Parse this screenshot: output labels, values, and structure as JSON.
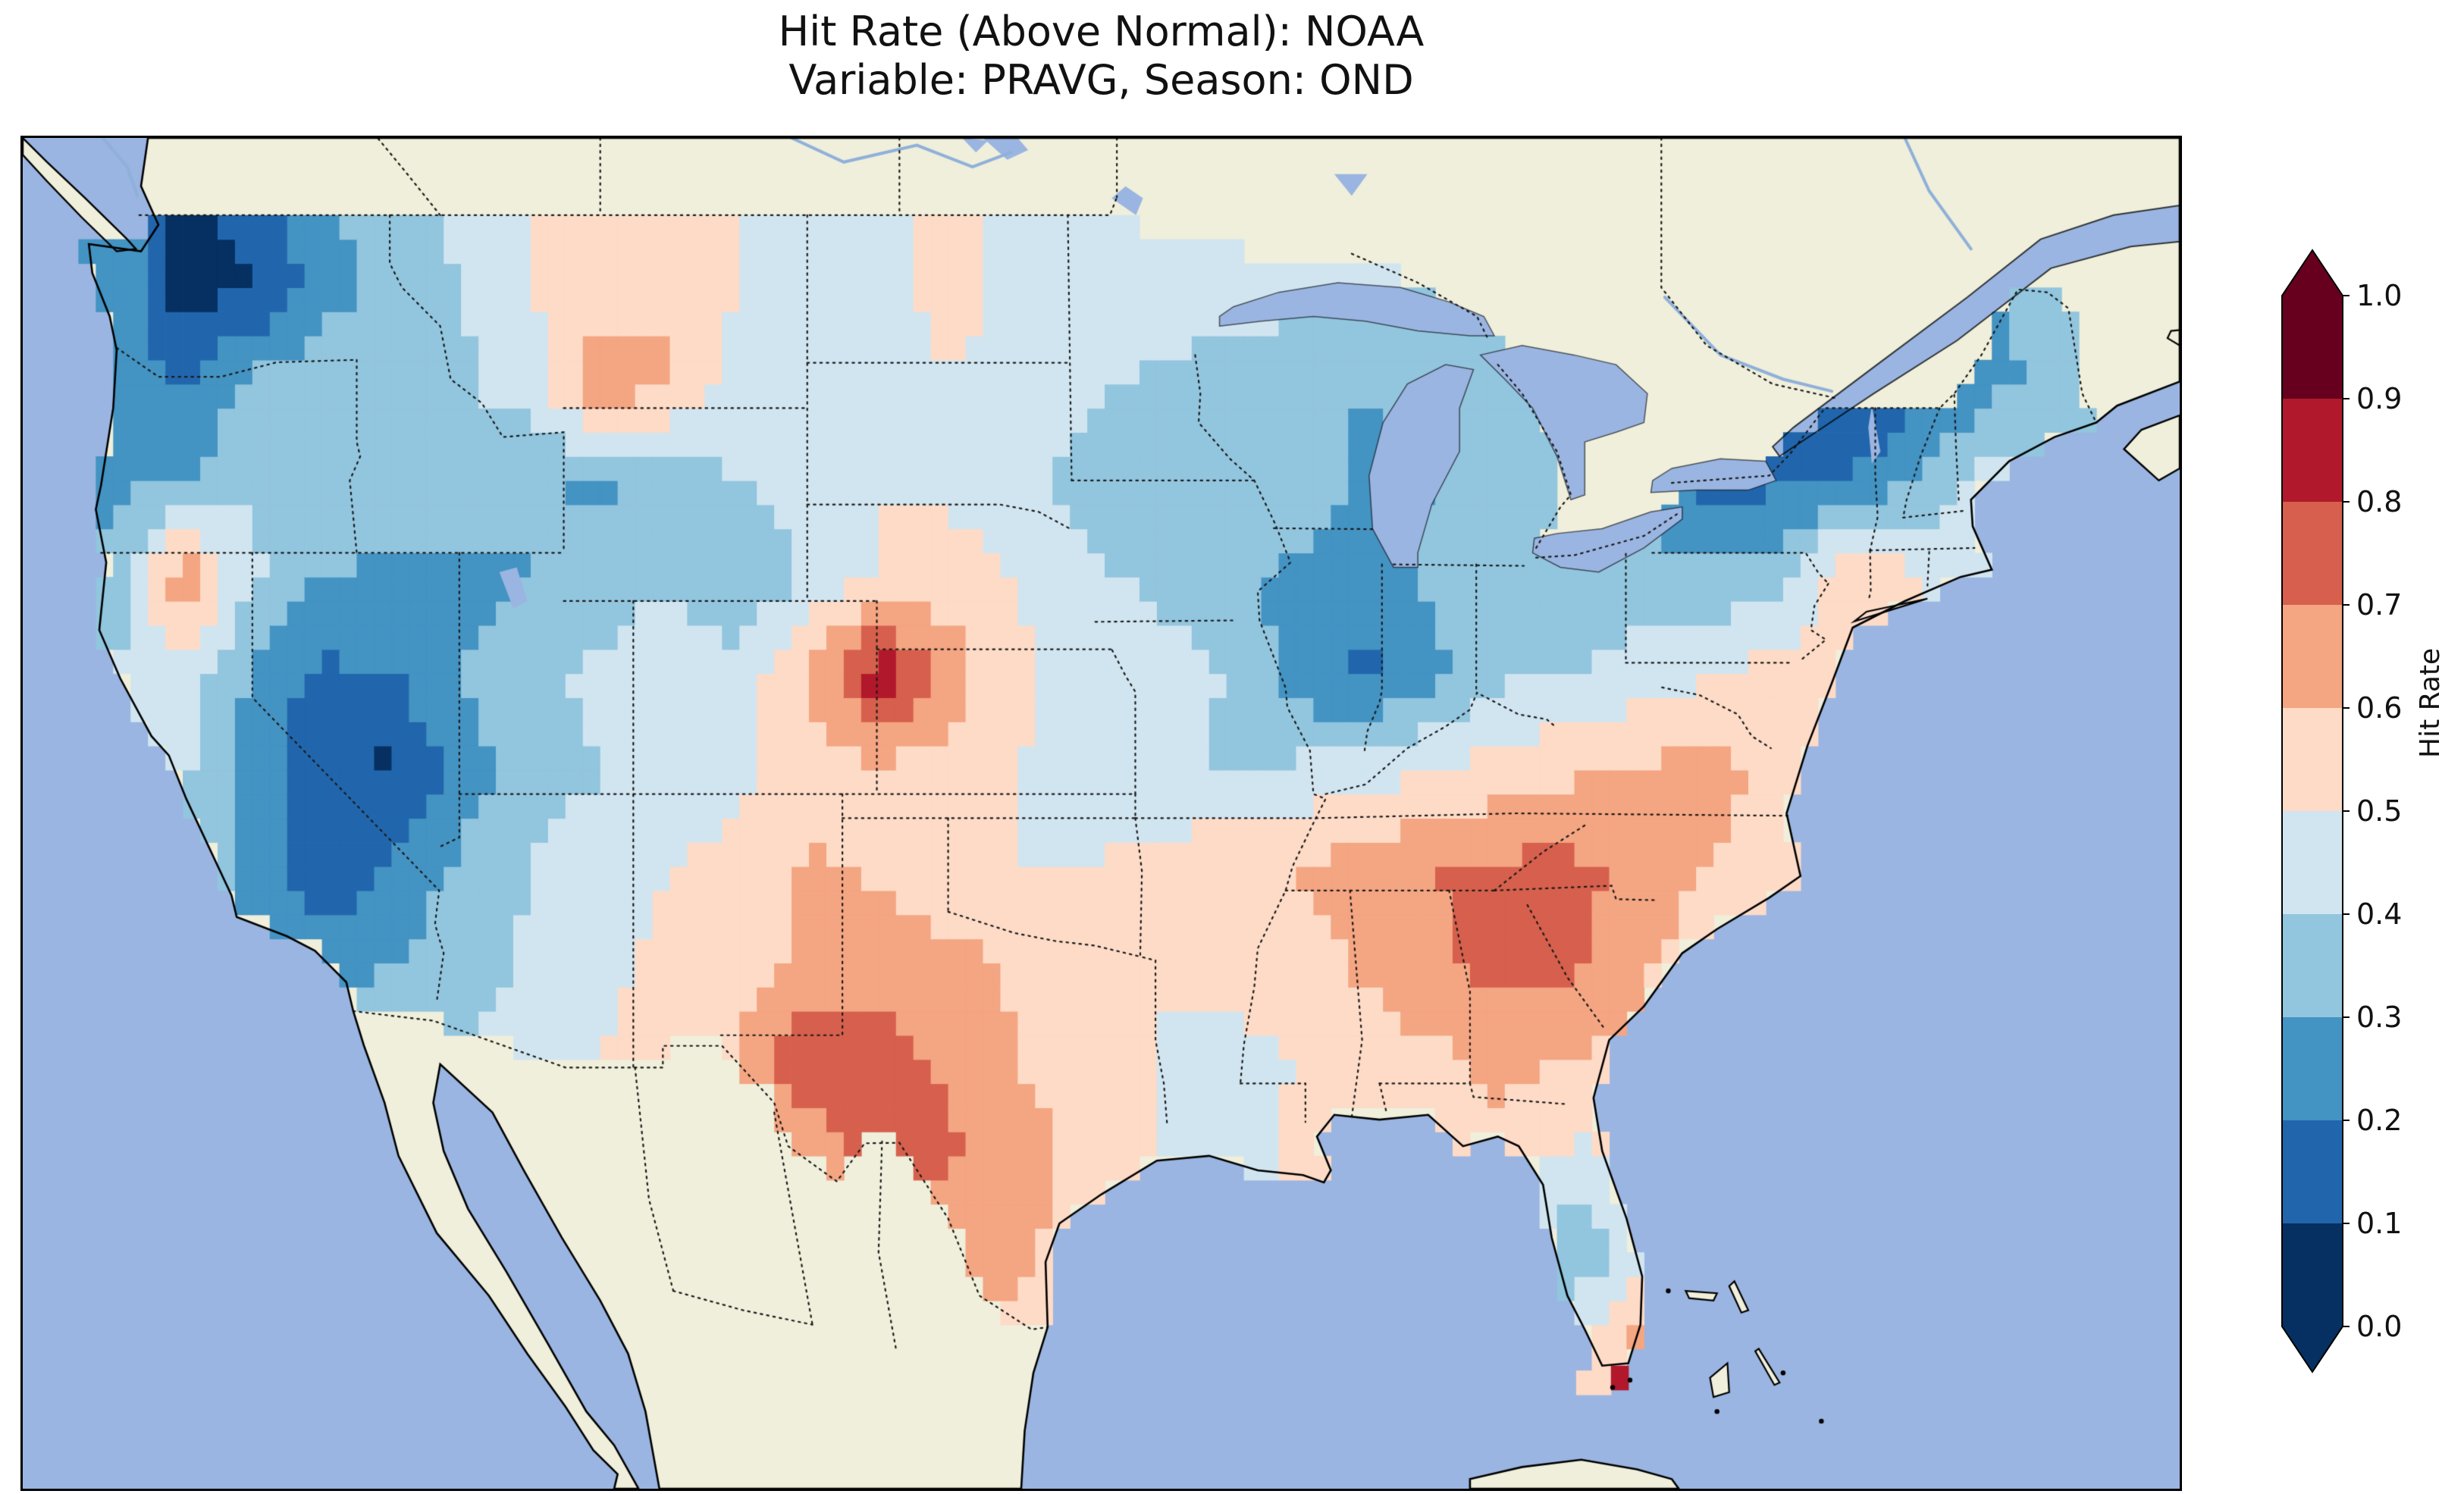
{
  "title": {
    "line1": "Hit Rate (Above Normal): NOAA",
    "line2": "Variable: PRAVG, Season: OND"
  },
  "colorbar": {
    "label": "Hit Rate",
    "ticks": [
      "1.0",
      "0.9",
      "0.8",
      "0.7",
      "0.6",
      "0.5",
      "0.4",
      "0.3",
      "0.2",
      "0.1",
      "0.0"
    ],
    "bin_colors_low_to_high": [
      "#053061",
      "#2166ac",
      "#4393c3",
      "#92c5de",
      "#d1e5f0",
      "#fddbc7",
      "#f4a582",
      "#d6604d",
      "#b2182b",
      "#67001f"
    ],
    "extend_over_color": "#67001f",
    "extend_under_color": "#053061"
  },
  "map": {
    "ocean_color": "#9ab5e1",
    "land_color": "#efefdb",
    "coastline_color": "#000000",
    "border_line_style": "dotted"
  },
  "chart_data": {
    "type": "heatmap",
    "title": "Hit Rate (Above Normal): NOAA",
    "subtitle": "Variable: PRAVG, Season: OND",
    "value_label": "Hit Rate",
    "value_range": [
      0.0,
      1.0
    ],
    "colormap": "RdBu_r",
    "colorbar_ticks": [
      0.0,
      0.1,
      0.2,
      0.3,
      0.4,
      0.5,
      0.6,
      0.7,
      0.8,
      0.9,
      1.0
    ],
    "grid": {
      "lon_start": -124,
      "lon_step": 2,
      "lat_start": 49.5,
      "lat_step": -2,
      "ncols": 29,
      "nrows": 13,
      "values": [
        [
          0.28,
          0.05,
          0.15,
          0.28,
          0.38,
          0.42,
          0.5,
          0.55,
          0.58,
          0.5,
          0.46,
          0.48,
          0.52,
          0.48,
          0.46,
          0.48,
          0.46,
          0.42,
          0.4,
          0.4,
          0.35,
          0.35,
          0.3,
          0.25,
          0.2,
          0.25,
          0.3,
          0.3,
          0.35
        ],
        [
          0.3,
          0.05,
          0.1,
          0.25,
          0.35,
          0.4,
          0.5,
          0.55,
          0.6,
          0.5,
          0.45,
          0.48,
          0.52,
          0.48,
          0.45,
          0.48,
          0.45,
          0.42,
          0.4,
          0.4,
          0.35,
          0.35,
          0.3,
          0.25,
          0.2,
          0.25,
          0.3,
          0.3,
          0.35
        ],
        [
          0.25,
          0.2,
          0.32,
          0.38,
          0.32,
          0.38,
          0.45,
          0.68,
          0.6,
          0.45,
          0.4,
          0.45,
          0.5,
          0.48,
          0.42,
          0.38,
          0.35,
          0.35,
          0.3,
          0.32,
          0.32,
          0.3,
          0.28,
          0.25,
          0.18,
          0.05,
          0.15,
          0.28,
          0.32
        ],
        [
          0.28,
          0.3,
          0.38,
          0.4,
          0.35,
          0.4,
          0.32,
          0.28,
          0.35,
          0.4,
          0.45,
          0.5,
          0.48,
          0.42,
          0.35,
          0.35,
          0.38,
          0.35,
          0.28,
          0.3,
          0.35,
          0.32,
          0.28,
          0.15,
          0.18,
          0.22,
          0.32,
          0.45,
          0.4
        ],
        [
          0.32,
          0.68,
          0.42,
          0.3,
          0.28,
          0.25,
          0.3,
          0.35,
          0.38,
          0.3,
          0.42,
          0.5,
          0.55,
          0.5,
          0.42,
          0.38,
          0.32,
          0.28,
          0.25,
          0.32,
          0.38,
          0.32,
          0.35,
          0.32,
          0.38,
          0.6,
          0.5,
          0.45,
          0.4
        ],
        [
          0.4,
          0.48,
          0.28,
          0.18,
          0.2,
          0.3,
          0.38,
          0.42,
          0.48,
          0.45,
          0.6,
          0.87,
          0.65,
          0.52,
          0.46,
          0.45,
          0.4,
          0.25,
          0.17,
          0.28,
          0.38,
          0.4,
          0.45,
          0.5,
          0.55,
          0.52,
          0.45,
          0.4,
          0.4
        ],
        [
          0.4,
          0.42,
          0.25,
          0.12,
          0.08,
          0.25,
          0.35,
          0.4,
          0.45,
          0.48,
          0.55,
          0.58,
          0.55,
          0.5,
          0.48,
          0.45,
          0.38,
          0.42,
          0.45,
          0.5,
          0.55,
          0.58,
          0.62,
          0.62,
          0.58,
          0.5,
          0.45,
          0.45,
          0.45
        ],
        [
          0.35,
          0.35,
          0.28,
          0.12,
          0.22,
          0.32,
          0.4,
          0.45,
          0.5,
          0.52,
          0.62,
          0.58,
          0.52,
          0.5,
          0.5,
          0.52,
          0.58,
          0.6,
          0.65,
          0.7,
          0.72,
          0.72,
          0.68,
          0.6,
          0.55,
          0.5,
          0.5,
          0.5,
          0.5
        ],
        [
          0.3,
          0.3,
          0.3,
          0.25,
          0.3,
          0.35,
          0.42,
          0.48,
          0.52,
          0.55,
          0.62,
          0.66,
          0.64,
          0.58,
          0.55,
          0.5,
          0.52,
          0.55,
          0.62,
          0.68,
          0.75,
          0.72,
          0.62,
          0.5,
          0.5,
          0.5,
          0.5,
          0.5,
          0.5
        ],
        [
          0.4,
          0.4,
          0.4,
          0.4,
          0.4,
          0.4,
          0.45,
          0.5,
          0.55,
          0.6,
          0.82,
          0.74,
          0.68,
          0.6,
          0.55,
          0.5,
          0.48,
          0.5,
          0.55,
          0.58,
          0.62,
          0.6,
          0.55,
          0.5,
          0.5,
          0.5,
          0.5,
          0.5,
          0.5
        ],
        [
          0.45,
          0.45,
          0.45,
          0.45,
          0.45,
          0.45,
          0.45,
          0.5,
          0.55,
          0.58,
          0.6,
          0.78,
          0.72,
          0.64,
          0.58,
          0.5,
          0.46,
          0.52,
          0.5,
          0.55,
          0.58,
          0.48,
          0.52,
          0.5,
          0.5,
          0.5,
          0.5,
          0.5,
          0.5
        ],
        [
          0.5,
          0.5,
          0.5,
          0.5,
          0.5,
          0.5,
          0.5,
          0.5,
          0.5,
          0.5,
          0.55,
          0.6,
          0.62,
          0.62,
          0.55,
          0.5,
          0.5,
          0.5,
          0.5,
          0.5,
          0.45,
          0.32,
          0.45,
          0.5,
          0.5,
          0.5,
          0.5,
          0.5,
          0.5
        ],
        [
          0.5,
          0.5,
          0.5,
          0.5,
          0.5,
          0.5,
          0.5,
          0.5,
          0.5,
          0.5,
          0.52,
          0.55,
          0.58,
          0.58,
          0.52,
          0.5,
          0.5,
          0.5,
          0.5,
          0.5,
          0.5,
          0.5,
          0.65,
          0.5,
          0.5,
          0.5,
          0.5,
          0.5,
          0.5
        ]
      ]
    },
    "extra_cells": [
      {
        "lon": -81.7,
        "lat": 24.8,
        "value": 0.58
      },
      {
        "lon": -81.2,
        "lat": 24.8,
        "value": 0.58
      },
      {
        "lon": -80.7,
        "lat": 24.9,
        "value": 0.88
      }
    ]
  }
}
